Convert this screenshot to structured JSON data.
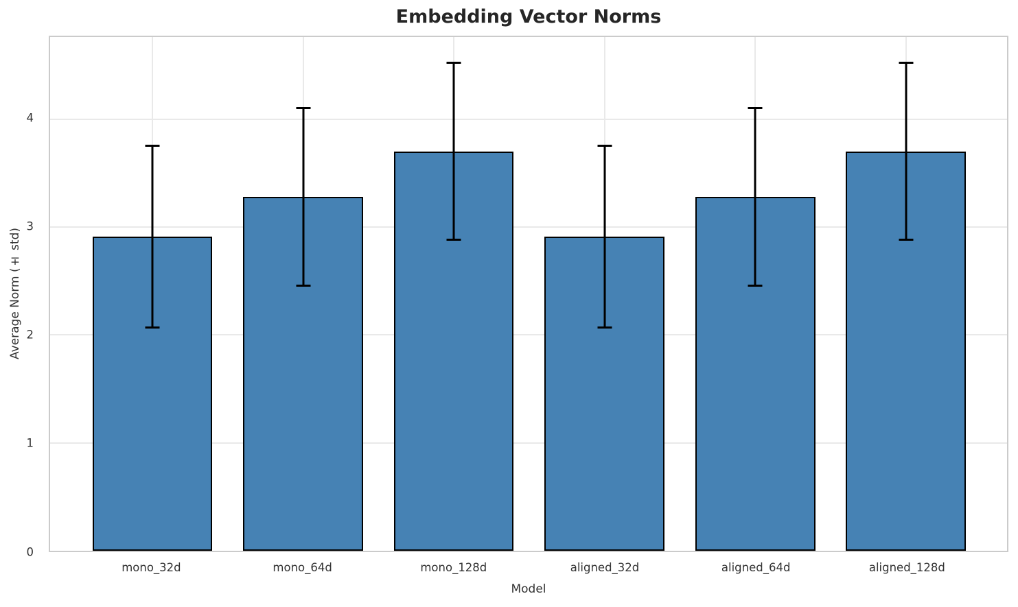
{
  "chart_data": {
    "type": "bar",
    "title": "Embedding Vector Norms",
    "xlabel": "Model",
    "ylabel": "Average Norm (± std)",
    "categories": [
      "mono_32d",
      "mono_64d",
      "mono_128d",
      "aligned_32d",
      "aligned_64d",
      "aligned_128d"
    ],
    "values": [
      2.91,
      3.28,
      3.7,
      2.91,
      3.28,
      3.7
    ],
    "errors": [
      0.85,
      0.83,
      0.83,
      0.85,
      0.83,
      0.83
    ],
    "ylim": [
      0,
      4.76
    ],
    "yticks": [
      0,
      1,
      2,
      3,
      4
    ],
    "grid": "both",
    "legend": "none",
    "colors": {
      "bar_fill": "#4682b4",
      "bar_edge": "#000000",
      "error_bar": "#000000",
      "gridline": "#e9e9e9",
      "spine": "#cbcbcb",
      "title_text": "#262626",
      "tick_text": "#333333",
      "background": "#ffffff"
    }
  }
}
